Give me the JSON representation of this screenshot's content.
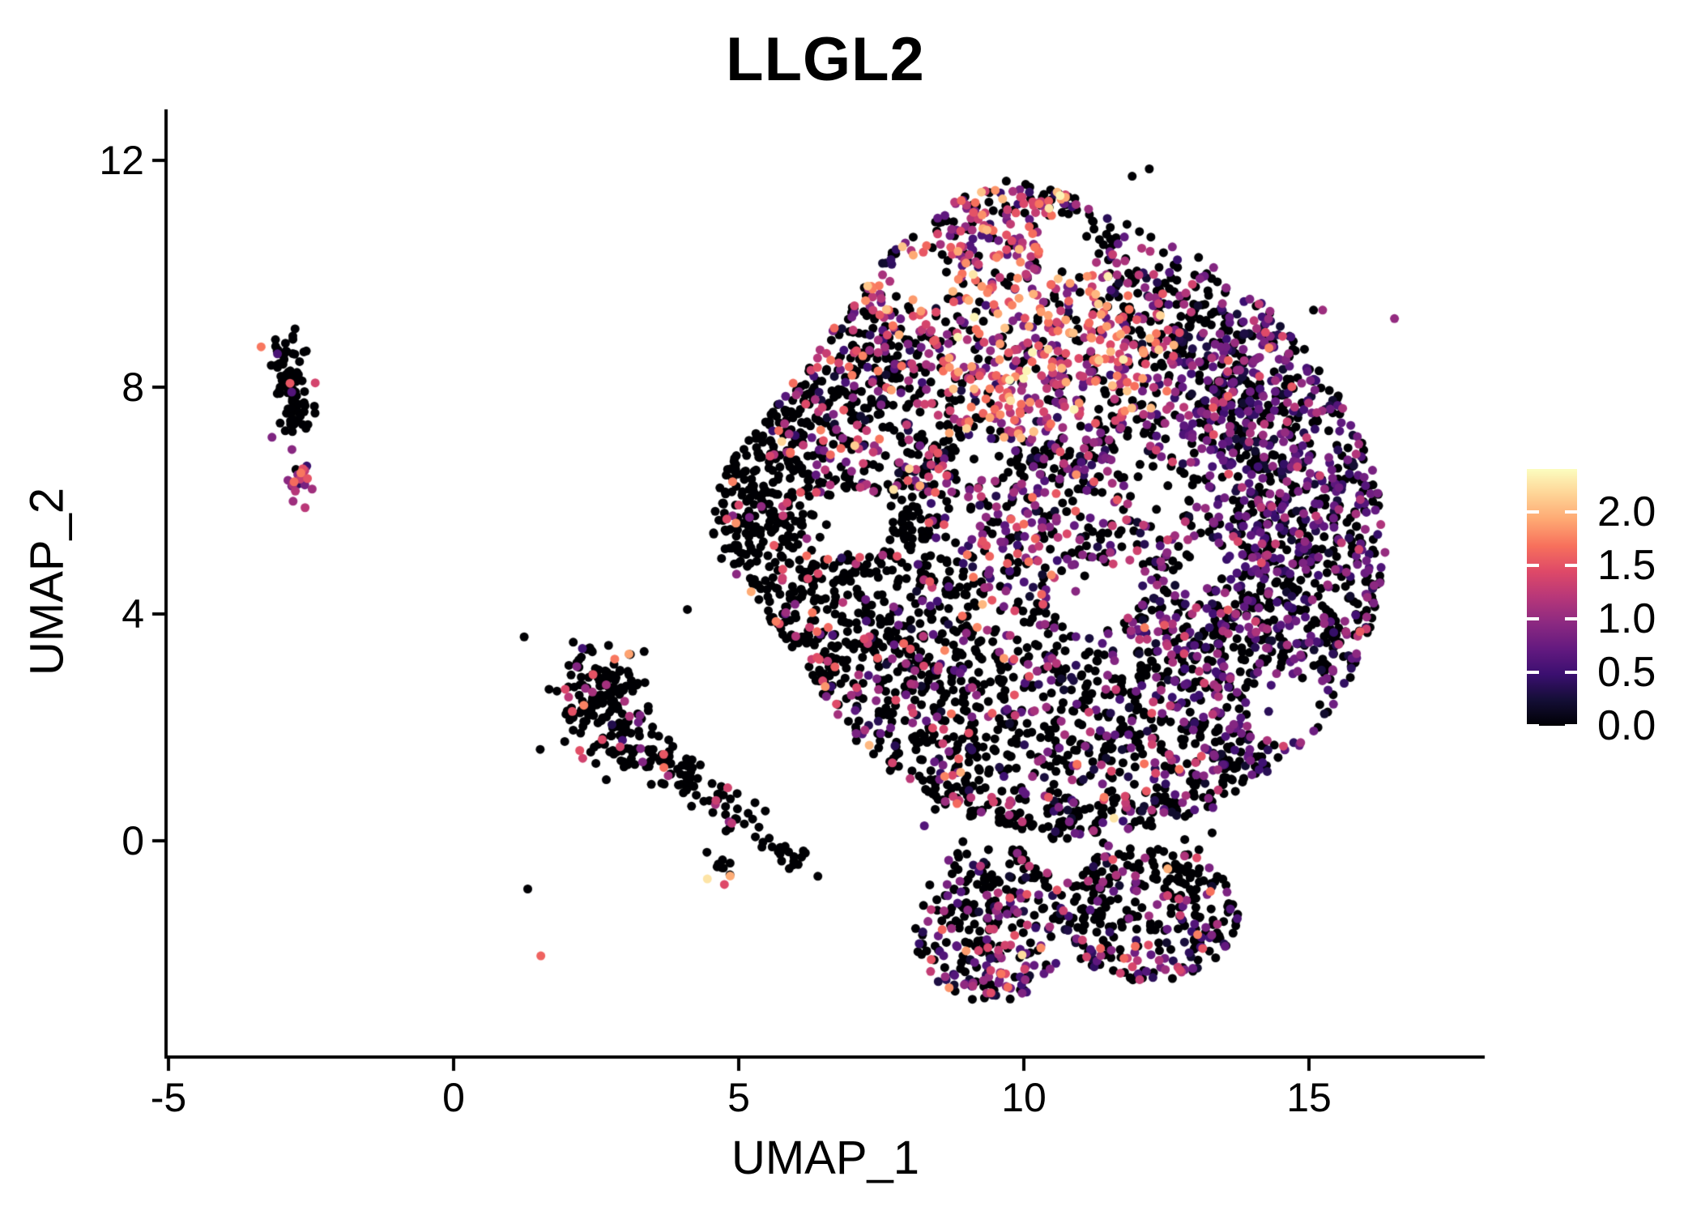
{
  "title": "LLGL2",
  "axes": {
    "x": {
      "label": "UMAP_1",
      "ticks": [
        -5,
        0,
        5,
        10,
        15
      ],
      "range": [
        -5.05,
        18.1
      ]
    },
    "y": {
      "label": "UMAP_2",
      "ticks": [
        0,
        4,
        8,
        12
      ],
      "range": [
        -3.8,
        12.9
      ]
    }
  },
  "legend": {
    "tick_labels": [
      "2.0",
      "1.5",
      "1.0",
      "0.5",
      "0.0"
    ],
    "tick_values": [
      2.0,
      1.5,
      1.0,
      0.5,
      0.0
    ],
    "domain": [
      0,
      2.4
    ],
    "colormap": "magma",
    "stops": [
      [
        0,
        "#000004"
      ],
      [
        0.1,
        "#140e36"
      ],
      [
        0.2,
        "#3b0f70"
      ],
      [
        0.3,
        "#641a80"
      ],
      [
        0.4,
        "#8c2981"
      ],
      [
        0.5,
        "#b73779"
      ],
      [
        0.6,
        "#de4968"
      ],
      [
        0.7,
        "#f7705c"
      ],
      [
        0.8,
        "#fea772"
      ],
      [
        0.9,
        "#fed395"
      ],
      [
        1,
        "#fcfdbf"
      ]
    ]
  },
  "chart_data": {
    "type": "scatter",
    "title": "LLGL2",
    "xlabel": "UMAP_1",
    "ylabel": "UMAP_2",
    "x_ticks": [
      -5,
      0,
      5,
      10,
      15
    ],
    "y_ticks": [
      0,
      4,
      8,
      12
    ],
    "xlim": [
      -5.05,
      18.1
    ],
    "ylim": [
      -3.8,
      12.9
    ],
    "grid": false,
    "legend_position": "right",
    "color_scale": {
      "name": "magma",
      "domain": [
        0,
        2.4
      ],
      "legend_ticks": [
        0.0,
        0.5,
        1.0,
        1.5,
        2.0
      ]
    },
    "point_radius_px": 5.5,
    "n_points_estimate": 5650,
    "seed": 1337,
    "clusters": [
      {
        "name": "left-islet-strip",
        "shape": "strip",
        "from": [
          -2.95,
          8.8
        ],
        "to": [
          -2.72,
          7.3
        ],
        "sigma": 0.18,
        "n": 95,
        "expr": {
          "p_zero": 0.94,
          "mean": 1.0,
          "sd": 0.4
        }
      },
      {
        "name": "left-islet-knob",
        "shape": "gauss",
        "center": [
          -2.67,
          6.38
        ],
        "sigma": [
          0.13,
          0.2
        ],
        "n": 22,
        "expr": {
          "p_zero": 0.2,
          "mean": 1.05,
          "sd": 0.35
        }
      },
      {
        "name": "mid-cluster-body",
        "shape": "gauss",
        "center": [
          2.55,
          2.55
        ],
        "sigma": [
          0.38,
          0.52
        ],
        "n": 155,
        "expr": {
          "p_zero": 0.9,
          "mean": 1.2,
          "sd": 0.4
        }
      },
      {
        "name": "mid-cluster-arm",
        "shape": "strip",
        "from": [
          2.9,
          1.8
        ],
        "to": [
          4.35,
          1.05
        ],
        "sigma": 0.22,
        "n": 85,
        "expr": {
          "p_zero": 0.88,
          "mean": 1.2,
          "sd": 0.45
        }
      },
      {
        "name": "offshoot-chain",
        "shape": "strip",
        "from": [
          4.55,
          0.85
        ],
        "to": [
          6.2,
          -0.45
        ],
        "sigma": 0.16,
        "n": 50,
        "expr": {
          "p_zero": 0.9,
          "mean": 0.9,
          "sd": 0.4
        }
      },
      {
        "name": "offshoot-knot",
        "shape": "gauss",
        "center": [
          4.72,
          -0.5
        ],
        "sigma": [
          0.13,
          0.13
        ],
        "n": 10,
        "expr": {
          "p_zero": 0.75,
          "mean": 1.7,
          "sd": 0.35
        }
      },
      {
        "name": "main-blob",
        "shape": "polygon",
        "n": 4600,
        "vertices": [
          [
            4.35,
            5.3
          ],
          [
            4.8,
            6.6
          ],
          [
            6.2,
            8.4
          ],
          [
            7.6,
            10.3
          ],
          [
            8.6,
            11.2
          ],
          [
            9.6,
            11.65
          ],
          [
            10.6,
            11.5
          ],
          [
            11.4,
            11.2
          ],
          [
            12.3,
            10.6
          ],
          [
            13.3,
            10.2
          ],
          [
            14.2,
            9.5
          ],
          [
            15.1,
            8.5
          ],
          [
            15.8,
            7.4
          ],
          [
            16.2,
            6.3
          ],
          [
            16.35,
            5.2
          ],
          [
            16.2,
            4.1
          ],
          [
            15.8,
            3.0
          ],
          [
            15.2,
            2.0
          ],
          [
            14.4,
            1.2
          ],
          [
            13.4,
            0.6
          ],
          [
            12.3,
            0.25
          ],
          [
            11.0,
            0.1
          ],
          [
            9.8,
            0.2
          ],
          [
            8.8,
            0.5
          ],
          [
            7.9,
            1.0
          ],
          [
            7.1,
            1.7
          ],
          [
            6.4,
            2.6
          ],
          [
            5.8,
            3.5
          ],
          [
            5.2,
            4.4
          ]
        ],
        "voids": [
          [
            8.15,
            9.85,
            0.45
          ],
          [
            10.75,
            10.55,
            0.5
          ],
          [
            7.1,
            5.6,
            0.6
          ],
          [
            11.2,
            4.3,
            0.65
          ],
          [
            14.5,
            2.35,
            0.6
          ],
          [
            12.4,
            6.1,
            0.5
          ],
          [
            9.2,
            6.7,
            0.45
          ],
          [
            13.1,
            4.9,
            0.45
          ]
        ],
        "regions": [
          {
            "center": [
              10.2,
              9.2
            ],
            "r": 2.6,
            "p_zero": 0.3,
            "mean": 1.3,
            "sd": 0.5
          },
          {
            "center": [
              8.0,
              10.6
            ],
            "r": 1.6,
            "p_zero": 0.42,
            "mean": 1.15,
            "sd": 0.55
          },
          {
            "center": [
              12.1,
              10.8
            ],
            "r": 1.7,
            "p_zero": 0.55,
            "mean": 0.8,
            "sd": 0.45
          },
          {
            "center": [
              7.2,
              7.6
            ],
            "r": 1.9,
            "p_zero": 0.62,
            "mean": 1.0,
            "sd": 0.5
          },
          {
            "center": [
              5.8,
              4.9
            ],
            "r": 2.4,
            "p_zero": 0.85,
            "mean": 1.25,
            "sd": 0.35
          },
          {
            "center": [
              8.6,
              3.0
            ],
            "r": 2.2,
            "p_zero": 0.72,
            "mean": 0.95,
            "sd": 0.5
          },
          {
            "center": [
              11.0,
              5.3
            ],
            "r": 2.4,
            "p_zero": 0.52,
            "mean": 0.85,
            "sd": 0.45
          },
          {
            "center": [
              11.3,
              2.0
            ],
            "r": 2.2,
            "p_zero": 0.68,
            "mean": 0.8,
            "sd": 0.45
          },
          {
            "center": [
              14.6,
              7.5
            ],
            "r": 2.4,
            "p_zero": 0.45,
            "mean": 0.7,
            "sd": 0.35
          },
          {
            "center": [
              15.2,
              3.8
            ],
            "r": 2.4,
            "p_zero": 0.55,
            "mean": 0.68,
            "sd": 0.35
          }
        ]
      },
      {
        "name": "bottom-lobe-left",
        "shape": "ellipse",
        "center": [
          9.4,
          -1.45
        ],
        "r": [
          1.35,
          1.4
        ],
        "n": 280,
        "edge_boost": true,
        "expr": {
          "p_zero": 0.7,
          "mean": 0.9,
          "sd": 0.45
        }
      },
      {
        "name": "bottom-lobe-right",
        "shape": "ellipse",
        "center": [
          12.15,
          -1.3
        ],
        "r": [
          1.6,
          1.2
        ],
        "n": 300,
        "edge_boost": true,
        "expr": {
          "p_zero": 0.72,
          "mean": 0.85,
          "sd": 0.45
        }
      },
      {
        "name": "neck-sparse",
        "shape": "strip",
        "from": [
          8.6,
          0.2
        ],
        "to": [
          13.5,
          -0.05
        ],
        "sigma": 0.3,
        "n": 30,
        "expr": {
          "p_zero": 0.75,
          "mean": 0.8,
          "sd": 0.4
        }
      }
    ],
    "outliers": [
      [
        16.5,
        9.21,
        1.0
      ],
      [
        15.08,
        9.36,
        0
      ],
      [
        15.24,
        9.36,
        1.05
      ],
      [
        4.85,
        -0.62,
        1.95
      ],
      [
        4.1,
        4.08,
        0
      ],
      [
        1.53,
        -2.03,
        1.6
      ],
      [
        1.3,
        -0.85,
        0
      ],
      [
        12.2,
        11.85,
        0
      ],
      [
        11.9,
        11.72,
        0
      ]
    ]
  }
}
